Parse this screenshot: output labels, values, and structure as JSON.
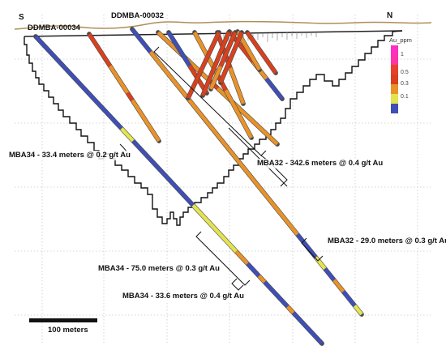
{
  "header": {
    "south": "S",
    "north": "N"
  },
  "holes": [
    {
      "id": "DDMBA-00034"
    },
    {
      "id": "DDMBA-00032"
    }
  ],
  "legend": {
    "title": "Au_ppm",
    "values": [
      "1",
      "0.5",
      "0.3",
      "0.1"
    ],
    "colors": [
      "#ff2ec4",
      "#e8412a",
      "#e8922a",
      "#e4e350",
      "#3f4fb5"
    ]
  },
  "intervals": [
    "MBA34 - 33.4 meters @ 0.2 g/t Au",
    "MBA32 - 342.6 meters @ 0.4 g/t Au",
    "MBA32 - 29.0 meters @ 0.3 g/t Au",
    "MBA34 - 75.0 meters @ 0.3 g/t Au",
    "MBA34 - 33.6 meters @ 0.4 g/t Au"
  ],
  "scale": {
    "label": "100 meters"
  }
}
